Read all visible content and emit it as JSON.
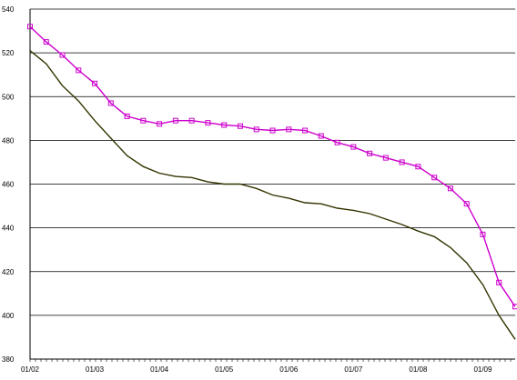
{
  "chart_data": {
    "type": "line",
    "categories": [
      "01/02",
      null,
      null,
      null,
      "01/03",
      null,
      null,
      null,
      "01/04",
      null,
      null,
      null,
      "01/05",
      null,
      null,
      null,
      "01/06",
      null,
      null,
      null,
      "01/07",
      null,
      null,
      null,
      "01/08",
      null,
      null,
      null,
      "01/09",
      null,
      null
    ],
    "series": [
      {
        "color": "#cc00cc",
        "marker": "square",
        "values": [
          532,
          525,
          519,
          512,
          506,
          497,
          491,
          489,
          487.5,
          489,
          489,
          488,
          487,
          486.5,
          485,
          484.5,
          485,
          484.5,
          482,
          479,
          477,
          474,
          472,
          470,
          468,
          463,
          458,
          451,
          437,
          415,
          404
        ]
      },
      {
        "color": "#333300",
        "values": [
          521,
          515,
          505,
          498,
          489,
          481,
          473,
          468,
          465,
          463.5,
          463,
          461,
          460,
          460,
          458,
          455,
          453.5,
          451.5,
          451,
          449,
          448,
          446.5,
          444,
          441.5,
          438.5,
          436,
          431,
          424,
          414,
          400,
          389
        ]
      }
    ],
    "ylim": [
      380,
      540
    ],
    "yticks": [
      380,
      400,
      420,
      440,
      460,
      480,
      500,
      520,
      540
    ],
    "grid": true
  }
}
